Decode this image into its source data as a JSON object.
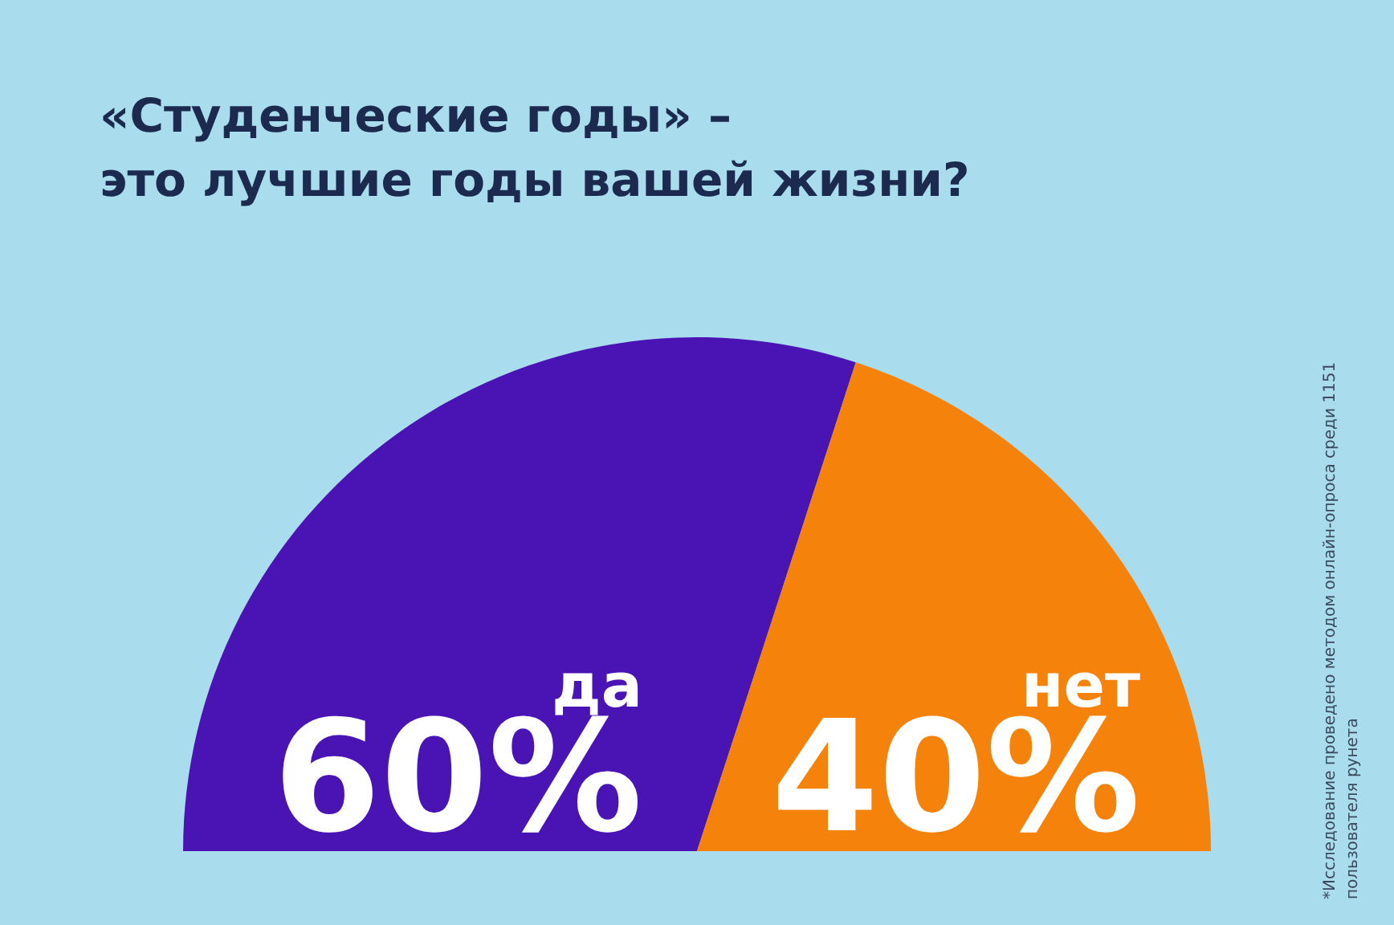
{
  "chart_data": {
    "type": "pie",
    "title": "«Студенческие годы» –\nэто лучшие годы вашей жизни?",
    "categories": [
      "да",
      "нет"
    ],
    "values": [
      60,
      40
    ],
    "value_labels": [
      "60%",
      "40%"
    ],
    "colors": [
      "#4a14b4",
      "#f5820a"
    ],
    "annotations": [
      "*Исследование проведено методом онлайн-опроса среди 1151 пользователя рунета"
    ]
  }
}
